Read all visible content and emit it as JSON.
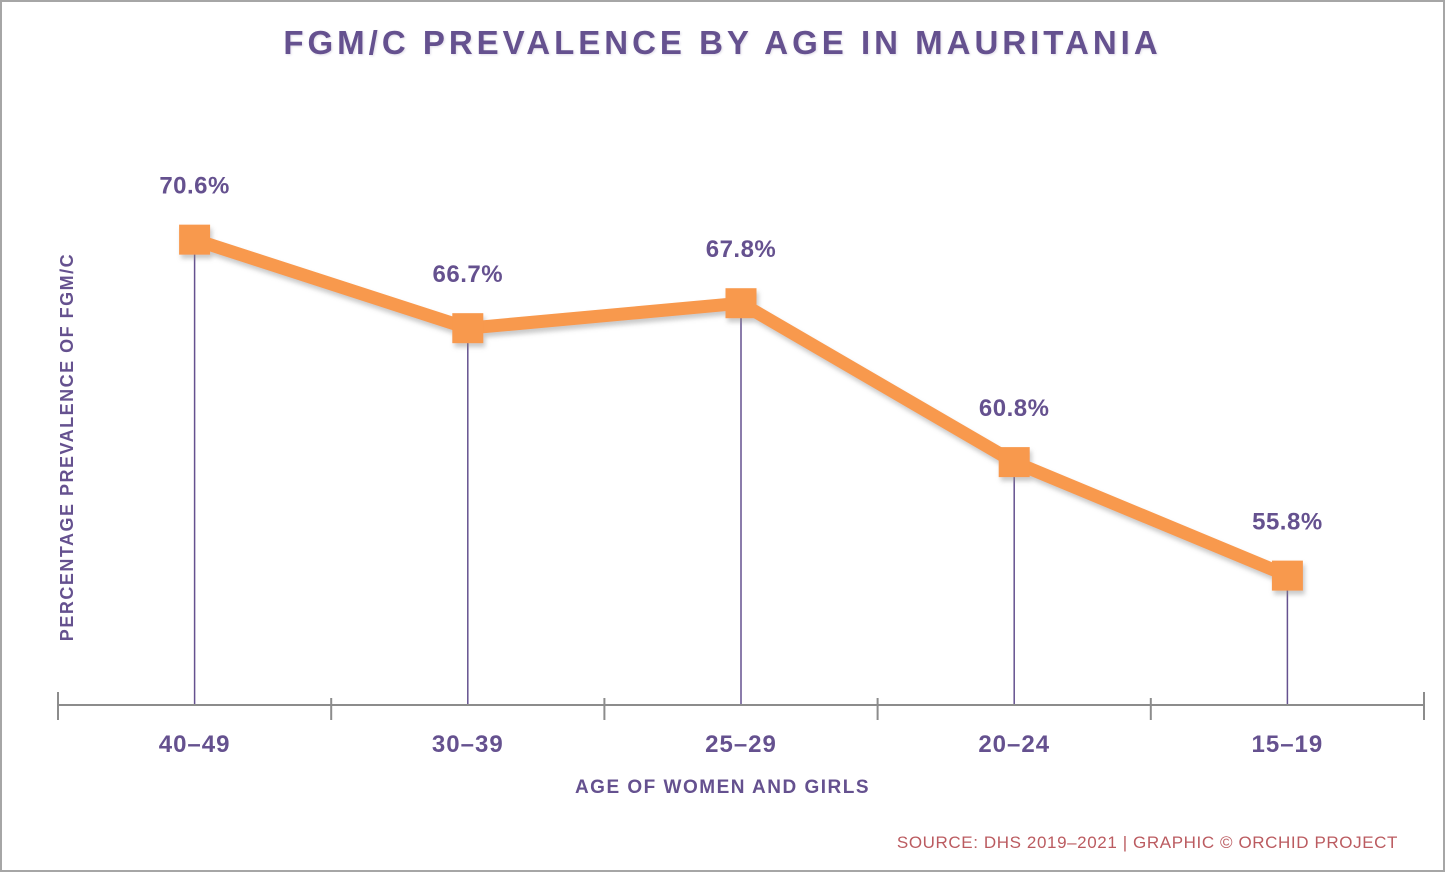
{
  "chart_data": {
    "type": "line",
    "title": "FGM/C PREVALENCE BY AGE IN MAURITANIA",
    "xlabel": "AGE OF WOMEN AND GIRLS",
    "ylabel": "PERCENTAGE PREVALENCE OF FGM/C",
    "source": "SOURCE: DHS 2019–2021 | GRAPHIC © ORCHID PROJECT",
    "categories": [
      "40–49",
      "30–39",
      "25–29",
      "20–24",
      "15–19"
    ],
    "values": [
      70.6,
      66.7,
      67.8,
      60.8,
      55.8
    ],
    "point_labels": [
      "70.6%",
      "66.7%",
      "67.8%",
      "60.8%",
      "55.8%"
    ],
    "ylim": [
      50,
      78
    ],
    "grid": false,
    "legend": false,
    "marker": "square",
    "colors": {
      "line": "#F8994D",
      "marker": "#F8994D",
      "text_purple": "#65518F",
      "dropline": "#65518F",
      "axis": "#8C8C8C",
      "source_text": "#BB5B60",
      "background": "#FFFFFF",
      "border": "#A6A6A6"
    }
  }
}
